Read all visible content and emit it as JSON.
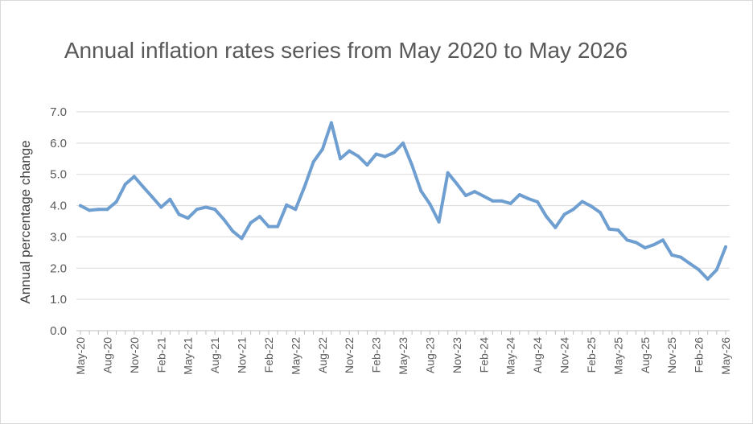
{
  "chart_data": {
    "type": "line",
    "title": "Annual inflation rates series from May 2020 to May 2026",
    "ylabel": "Annual percentage change",
    "xlabel": "",
    "ylim": [
      0,
      7
    ],
    "yticks": [
      "0.0",
      "1.0",
      "2.0",
      "3.0",
      "4.0",
      "5.0",
      "6.0",
      "7.0"
    ],
    "grid": true,
    "legend": "none",
    "x": [
      "May-20",
      "Jun-20",
      "Jul-20",
      "Aug-20",
      "Sep-20",
      "Oct-20",
      "Nov-20",
      "Dec-20",
      "Jan-21",
      "Feb-21",
      "Mar-21",
      "Apr-21",
      "May-21",
      "Jun-21",
      "Jul-21",
      "Aug-21",
      "Sep-21",
      "Oct-21",
      "Nov-21",
      "Dec-21",
      "Jan-22",
      "Feb-22",
      "Mar-22",
      "Apr-22",
      "May-22",
      "Jun-22",
      "Jul-22",
      "Aug-22",
      "Sep-22",
      "Oct-22",
      "Nov-22",
      "Dec-22",
      "Jan-23",
      "Feb-23",
      "Mar-23",
      "Apr-23",
      "May-23",
      "Jun-23",
      "Jul-23",
      "Aug-23",
      "Sep-23",
      "Oct-23",
      "Nov-23",
      "Dec-23",
      "Jan-24",
      "Feb-24",
      "Mar-24",
      "Apr-24",
      "May-24",
      "Jun-24",
      "Jul-24",
      "Aug-24",
      "Sep-24",
      "Oct-24",
      "Nov-24",
      "Dec-24",
      "Jan-25",
      "Feb-25",
      "Mar-25",
      "Apr-25",
      "May-25",
      "Jun-25",
      "Jul-25",
      "Aug-25",
      "Sep-25",
      "Oct-25",
      "Nov-25",
      "Dec-25",
      "Jan-26",
      "Feb-26",
      "Mar-26",
      "Apr-26",
      "May-26"
    ],
    "xtick_labels": [
      "May-20",
      "Aug-20",
      "Nov-20",
      "Feb-21",
      "May-21",
      "Aug-21",
      "Nov-21",
      "Feb-22",
      "May-22",
      "Aug-22",
      "Nov-22",
      "Feb-23",
      "May-23",
      "Aug-23",
      "Nov-23",
      "Feb-24",
      "May-24",
      "Aug-24",
      "Nov-24",
      "Feb-25",
      "May-25",
      "Aug-25",
      "Nov-25",
      "Feb-26",
      "May-26"
    ],
    "series": [
      {
        "name": "",
        "color": "#6f9fd0",
        "values": [
          4.0,
          3.85,
          3.88,
          3.88,
          4.12,
          4.68,
          4.93,
          4.6,
          4.28,
          3.95,
          4.2,
          3.72,
          3.6,
          3.88,
          3.95,
          3.88,
          3.56,
          3.18,
          2.95,
          3.45,
          3.65,
          3.33,
          3.33,
          4.02,
          3.88,
          4.6,
          5.4,
          5.8,
          6.65,
          5.5,
          5.75,
          5.58,
          5.3,
          5.65,
          5.57,
          5.7,
          6.0,
          5.3,
          4.47,
          4.05,
          3.48,
          5.05,
          4.7,
          4.32,
          4.45,
          4.3,
          4.15,
          4.15,
          4.07,
          4.35,
          4.22,
          4.12,
          3.65,
          3.3,
          3.72,
          3.88,
          4.13,
          3.98,
          3.78,
          3.25,
          3.22,
          2.9,
          2.82,
          2.65,
          2.75,
          2.9,
          2.42,
          2.35,
          2.15,
          1.95,
          1.65,
          1.95,
          2.68
        ]
      }
    ]
  }
}
